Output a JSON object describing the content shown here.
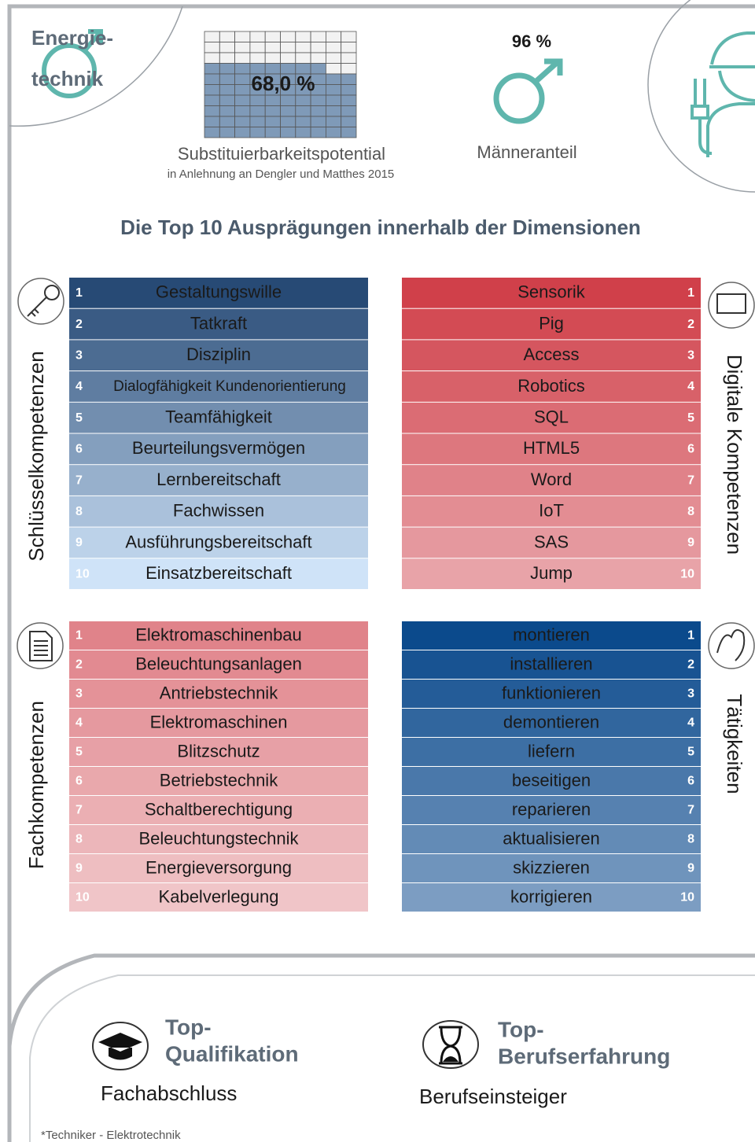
{
  "header": {
    "title_lines": [
      "Energie-",
      "technik"
    ]
  },
  "substitution": {
    "value": 68,
    "value_label": "68,0 %",
    "label": "Substituierbarkeitspotential",
    "source": "in Anlehnung an Dengler und Matthes 2015",
    "fill_color": "#7f9ab8"
  },
  "male_share": {
    "value_label": "96 %",
    "label": "Männeranteil"
  },
  "heading": "Die Top 10 Ausprägungen innerhalb der Dimensionen",
  "panels": [
    {
      "title": "Schlüsselkompetenzen",
      "side": "left",
      "colors": [
        "#274a75",
        "#cfe3f8"
      ],
      "text_color": "#1a1a1a",
      "items": [
        {
          "rank": 1,
          "label": "Gestaltungswille"
        },
        {
          "rank": 2,
          "label": "Tatkraft"
        },
        {
          "rank": 3,
          "label": "Disziplin"
        },
        {
          "rank": 4,
          "label": "Dialogfähigkeit Kundenorientierung"
        },
        {
          "rank": 5,
          "label": "Teamfähigkeit"
        },
        {
          "rank": 6,
          "label": "Beurteilungsvermögen"
        },
        {
          "rank": 7,
          "label": "Lernbereitschaft"
        },
        {
          "rank": 8,
          "label": "Fachwissen"
        },
        {
          "rank": 9,
          "label": "Ausführungsbereitschaft"
        },
        {
          "rank": 10,
          "label": "Einsatzbereitschaft"
        }
      ]
    },
    {
      "title": "Digitale Kompetenzen",
      "side": "right",
      "colors": [
        "#d0404a",
        "#e8a3a8"
      ],
      "text_color": "#1a1a1a",
      "items": [
        {
          "rank": 1,
          "label": "Sensorik"
        },
        {
          "rank": 2,
          "label": "Pig"
        },
        {
          "rank": 3,
          "label": "Access"
        },
        {
          "rank": 4,
          "label": "Robotics"
        },
        {
          "rank": 5,
          "label": "SQL"
        },
        {
          "rank": 6,
          "label": "HTML5"
        },
        {
          "rank": 7,
          "label": "Word"
        },
        {
          "rank": 8,
          "label": "IoT"
        },
        {
          "rank": 9,
          "label": "SAS"
        },
        {
          "rank": 10,
          "label": "Jump"
        }
      ]
    },
    {
      "title": "Fachkompetenzen",
      "side": "left",
      "colors": [
        "#e0838a",
        "#f0c5c8"
      ],
      "text_color": "#1a1a1a",
      "items": [
        {
          "rank": 1,
          "label": "Elektromaschinenbau"
        },
        {
          "rank": 2,
          "label": "Beleuchtungsanlagen"
        },
        {
          "rank": 3,
          "label": "Antriebstechnik"
        },
        {
          "rank": 4,
          "label": "Elektromaschinen"
        },
        {
          "rank": 5,
          "label": "Blitzschutz"
        },
        {
          "rank": 6,
          "label": "Betriebstechnik"
        },
        {
          "rank": 7,
          "label": "Schaltberechtigung"
        },
        {
          "rank": 8,
          "label": "Beleuchtungstechnik"
        },
        {
          "rank": 9,
          "label": "Energieversorgung"
        },
        {
          "rank": 10,
          "label": "Kabelverlegung"
        }
      ]
    },
    {
      "title": "Tätigkeiten",
      "side": "right",
      "colors": [
        "#0b4a8c",
        "#7c9dc2"
      ],
      "text_color": "#1a1a1a",
      "items": [
        {
          "rank": 1,
          "label": "montieren"
        },
        {
          "rank": 2,
          "label": "installieren"
        },
        {
          "rank": 3,
          "label": "funktionieren"
        },
        {
          "rank": 4,
          "label": "demontieren"
        },
        {
          "rank": 5,
          "label": "liefern"
        },
        {
          "rank": 6,
          "label": "beseitigen"
        },
        {
          "rank": 7,
          "label": "reparieren"
        },
        {
          "rank": 8,
          "label": "aktualisieren"
        },
        {
          "rank": 9,
          "label": "skizzieren"
        },
        {
          "rank": 10,
          "label": "korrigieren"
        }
      ]
    }
  ],
  "qualification": {
    "title_lines": [
      "Top-",
      "Qualifikation"
    ],
    "value": "Fachabschluss"
  },
  "experience": {
    "title_lines": [
      "Top-",
      "Berufserfahrung"
    ],
    "value": "Berufseinsteiger"
  },
  "footnote": "*Techniker - Elektrotechnik"
}
